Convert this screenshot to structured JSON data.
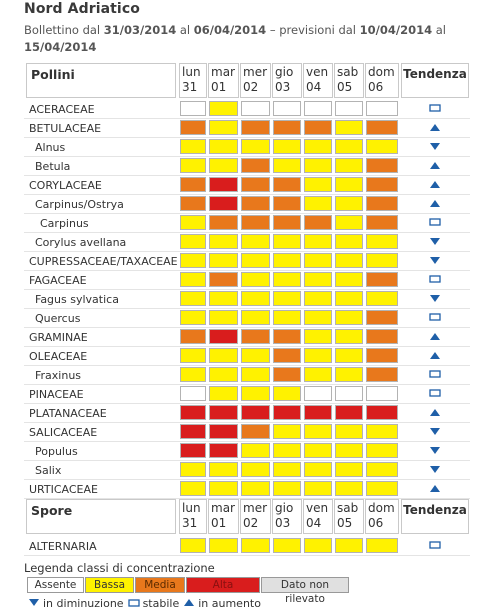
{
  "title": "Nord Adriatico",
  "bulletin": {
    "prefix": "Bollettino dal ",
    "from": "31/03/2014",
    "mid1": " al ",
    "to": "06/04/2014",
    "mid2": " – previsioni dal ",
    "fc_from": "10/04/2014",
    "mid3": " al ",
    "fc_to": "15/04/2014"
  },
  "days": [
    {
      "name": "lun",
      "num": "31"
    },
    {
      "name": "mar",
      "num": "01"
    },
    {
      "name": "mer",
      "num": "02"
    },
    {
      "name": "gio",
      "num": "03"
    },
    {
      "name": "ven",
      "num": "04"
    },
    {
      "name": "sab",
      "num": "05"
    },
    {
      "name": "dom",
      "num": "06"
    }
  ],
  "tendency_header": "Tendenza",
  "pollen_header": "Pollini",
  "spore_header": "Spore",
  "colors": {
    "white": "#ffffff",
    "yellow": "#fff200",
    "orange": "#e8781c",
    "red": "#d91d1d",
    "grey": "#e0e0e0",
    "arrow": "#1f5fa8"
  },
  "pollens": [
    {
      "label": "ACERACEAE",
      "levels": [
        "white",
        "yellow",
        "white",
        "white",
        "white",
        "white",
        "white"
      ],
      "trend": "stable"
    },
    {
      "label": "BETULACEAE",
      "levels": [
        "orange",
        "yellow",
        "orange",
        "orange",
        "orange",
        "yellow",
        "orange"
      ],
      "trend": "up"
    },
    {
      "label": "Alnus",
      "indent": true,
      "levels": [
        "yellow",
        "yellow",
        "yellow",
        "yellow",
        "yellow",
        "yellow",
        "yellow"
      ],
      "trend": "down"
    },
    {
      "label": "Betula",
      "indent": true,
      "levels": [
        "yellow",
        "yellow",
        "orange",
        "yellow",
        "yellow",
        "yellow",
        "orange"
      ],
      "trend": "up"
    },
    {
      "label": "CORYLACEAE",
      "levels": [
        "orange",
        "red",
        "orange",
        "orange",
        "yellow",
        "yellow",
        "orange"
      ],
      "trend": "up"
    },
    {
      "label": "Carpinus/Ostrya",
      "indent": true,
      "levels": [
        "orange",
        "red",
        "orange",
        "orange",
        "yellow",
        "yellow",
        "orange"
      ],
      "trend": "up"
    },
    {
      "label": "Carpinus",
      "indent2": true,
      "levels": [
        "yellow",
        "orange",
        "orange",
        "orange",
        "orange",
        "yellow",
        "orange"
      ],
      "trend": "stable"
    },
    {
      "label": "Corylus avellana",
      "indent": true,
      "levels": [
        "yellow",
        "yellow",
        "yellow",
        "yellow",
        "yellow",
        "yellow",
        "yellow"
      ],
      "trend": "down"
    },
    {
      "label": "CUPRESSACEAE/TAXACEAE",
      "levels": [
        "yellow",
        "yellow",
        "yellow",
        "yellow",
        "yellow",
        "yellow",
        "yellow"
      ],
      "trend": "down"
    },
    {
      "label": "FAGACEAE",
      "levels": [
        "yellow",
        "orange",
        "yellow",
        "yellow",
        "yellow",
        "yellow",
        "orange"
      ],
      "trend": "stable"
    },
    {
      "label": "Fagus sylvatica",
      "indent": true,
      "levels": [
        "yellow",
        "yellow",
        "yellow",
        "yellow",
        "yellow",
        "yellow",
        "yellow"
      ],
      "trend": "down"
    },
    {
      "label": "Quercus",
      "indent": true,
      "levels": [
        "yellow",
        "yellow",
        "yellow",
        "yellow",
        "yellow",
        "yellow",
        "orange"
      ],
      "trend": "stable"
    },
    {
      "label": "GRAMINAE",
      "levels": [
        "orange",
        "red",
        "orange",
        "orange",
        "yellow",
        "yellow",
        "orange"
      ],
      "trend": "up"
    },
    {
      "label": "OLEACEAE",
      "levels": [
        "yellow",
        "yellow",
        "yellow",
        "orange",
        "yellow",
        "yellow",
        "orange"
      ],
      "trend": "up"
    },
    {
      "label": "Fraxinus",
      "indent": true,
      "levels": [
        "yellow",
        "yellow",
        "yellow",
        "orange",
        "yellow",
        "yellow",
        "orange"
      ],
      "trend": "stable"
    },
    {
      "label": "PINACEAE",
      "levels": [
        "white",
        "yellow",
        "yellow",
        "yellow",
        "white",
        "white",
        "white"
      ],
      "trend": "stable"
    },
    {
      "label": "PLATANACEAE",
      "levels": [
        "red",
        "red",
        "red",
        "red",
        "red",
        "red",
        "red"
      ],
      "trend": "up"
    },
    {
      "label": "SALICACEAE",
      "levels": [
        "red",
        "red",
        "orange",
        "yellow",
        "yellow",
        "yellow",
        "yellow"
      ],
      "trend": "down"
    },
    {
      "label": "Populus",
      "indent": true,
      "levels": [
        "red",
        "red",
        "yellow",
        "yellow",
        "yellow",
        "yellow",
        "yellow"
      ],
      "trend": "down"
    },
    {
      "label": "Salix",
      "indent": true,
      "levels": [
        "yellow",
        "yellow",
        "yellow",
        "yellow",
        "yellow",
        "yellow",
        "yellow"
      ],
      "trend": "down"
    },
    {
      "label": "URTICACEAE",
      "levels": [
        "yellow",
        "yellow",
        "yellow",
        "yellow",
        "yellow",
        "yellow",
        "yellow"
      ],
      "trend": "up"
    }
  ],
  "spores": [
    {
      "label": "ALTERNARIA",
      "levels": [
        "yellow",
        "yellow",
        "yellow",
        "yellow",
        "yellow",
        "yellow",
        "yellow"
      ],
      "trend": "stable"
    }
  ],
  "legend": {
    "title": "Legenda classi di concentrazione",
    "classes": [
      {
        "label": "Assente",
        "color": "white"
      },
      {
        "label": "Bassa",
        "color": "yellow"
      },
      {
        "label": "Media",
        "color": "orange"
      },
      {
        "label": "Alta",
        "color": "red"
      },
      {
        "label": "Dato non rilevato",
        "color": "grey"
      }
    ],
    "trend_down": "in diminuzione",
    "trend_stable": "stabile",
    "trend_up": "in aumento"
  }
}
